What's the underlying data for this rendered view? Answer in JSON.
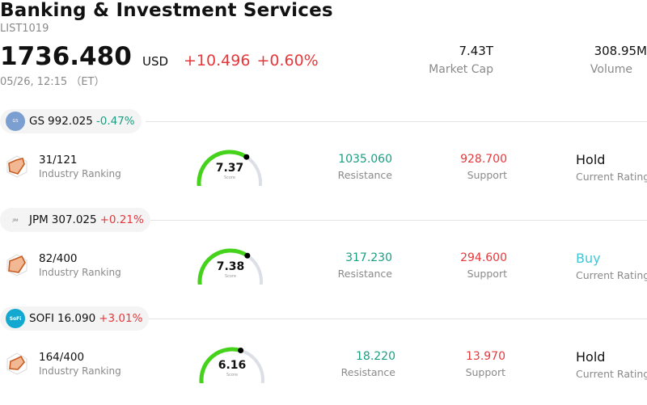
{
  "header": {
    "title": "Banking & Investment Services",
    "code": "LIST1019",
    "price": "1736.480",
    "currency": "USD",
    "change": "+10.496",
    "change_pct": "+0.60%",
    "timestamp": "05/26, 12:15 （ET）",
    "market_cap_value": "7.43T",
    "market_cap_label": "Market Cap",
    "volume_value": "308.95M",
    "volume_label": "Volume"
  },
  "colors": {
    "up": "#e5383b",
    "down": "#1a9e82",
    "buy": "#3cc7d6",
    "gauge_fill": "#44d21a",
    "gauge_track": "#dcdfe6"
  },
  "stocks": [
    {
      "symbol": "GS",
      "price": "992.025",
      "change_pct": "-0.47%",
      "direction": "down",
      "logo_icon": "goldman-sachs-logo",
      "ranking_value": "31/121",
      "ranking_label": "Industry Ranking",
      "score": "7.37",
      "score_label": "Score",
      "score_fraction": 0.737,
      "resistance_value": "1035.060",
      "resistance_label": "Resistance",
      "support_value": "928.700",
      "support_label": "Support",
      "rating_value": "Hold",
      "rating_label": "Current Rating"
    },
    {
      "symbol": "JPM",
      "price": "307.025",
      "change_pct": "+0.21%",
      "direction": "up",
      "logo_icon": "jpmorgan-logo",
      "ranking_value": "82/400",
      "ranking_label": "Industry Ranking",
      "score": "7.38",
      "score_label": "Score",
      "score_fraction": 0.738,
      "resistance_value": "317.230",
      "resistance_label": "Resistance",
      "support_value": "294.600",
      "support_label": "Support",
      "rating_value": "Buy",
      "rating_label": "Current Rating"
    },
    {
      "symbol": "SOFI",
      "price": "16.090",
      "change_pct": "+3.01%",
      "direction": "up",
      "logo_icon": "sofi-logo",
      "ranking_value": "164/400",
      "ranking_label": "Industry Ranking",
      "score": "6.16",
      "score_label": "Score",
      "score_fraction": 0.616,
      "resistance_value": "18.220",
      "resistance_label": "Resistance",
      "support_value": "13.970",
      "support_label": "Support",
      "rating_value": "Hold",
      "rating_label": "Current Rating"
    }
  ]
}
